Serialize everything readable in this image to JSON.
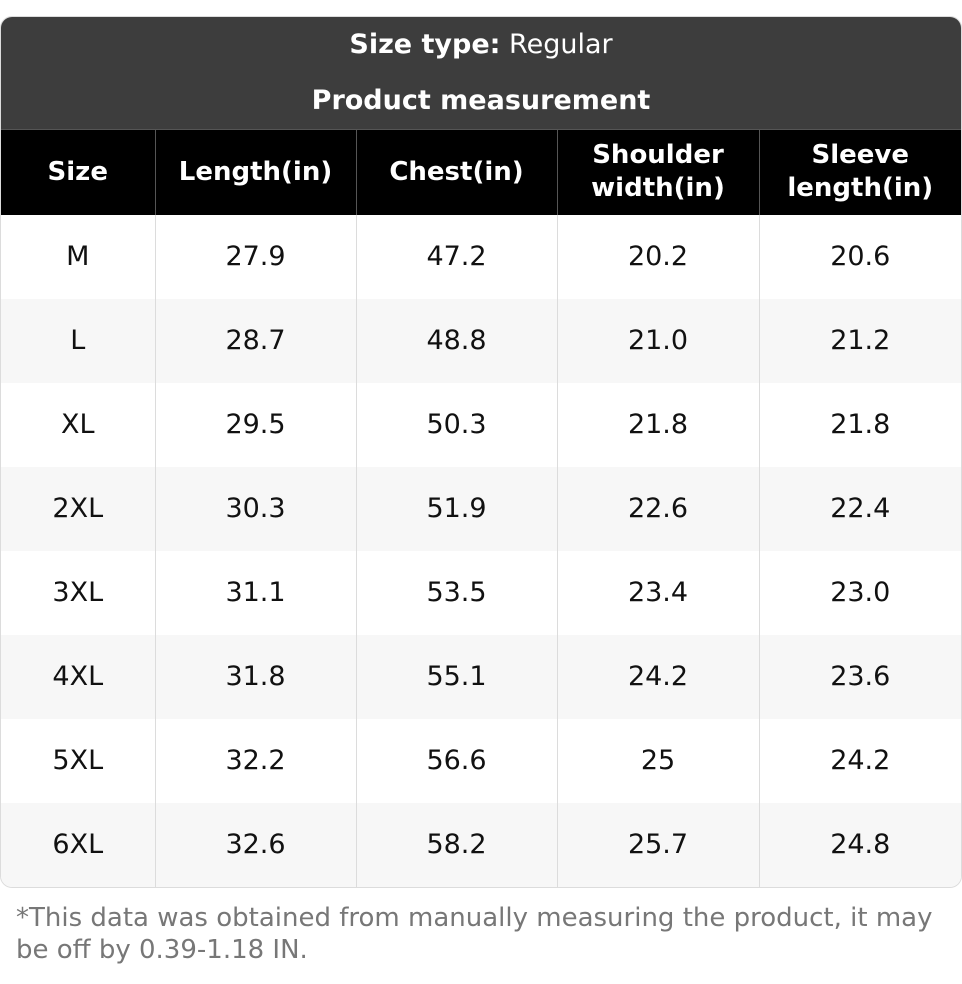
{
  "header": {
    "size_type_label": "Size type:",
    "size_type_value": "Regular",
    "title": "Product measurement"
  },
  "table": {
    "columns": [
      "Size",
      "Length(in)",
      "Chest(in)",
      "Shoulder width(in)",
      "Sleeve length(in)"
    ],
    "rows": [
      [
        "M",
        "27.9",
        "47.2",
        "20.2",
        "20.6"
      ],
      [
        "L",
        "28.7",
        "48.8",
        "21.0",
        "21.2"
      ],
      [
        "XL",
        "29.5",
        "50.3",
        "21.8",
        "21.8"
      ],
      [
        "2XL",
        "30.3",
        "51.9",
        "22.6",
        "22.4"
      ],
      [
        "3XL",
        "31.1",
        "53.5",
        "23.4",
        "23.0"
      ],
      [
        "4XL",
        "31.8",
        "55.1",
        "24.2",
        "23.6"
      ],
      [
        "5XL",
        "32.2",
        "56.6",
        "25",
        "24.2"
      ],
      [
        "6XL",
        "32.6",
        "58.2",
        "25.7",
        "24.8"
      ]
    ]
  },
  "note": "*This data was obtained from manually measuring the product, it may be off by 0.39-1.18 IN.",
  "colors": {
    "header_bg": "#3d3d3d",
    "column_header_bg": "#000000",
    "row_alt_bg": "#f7f7f7",
    "note_text": "#777777"
  }
}
